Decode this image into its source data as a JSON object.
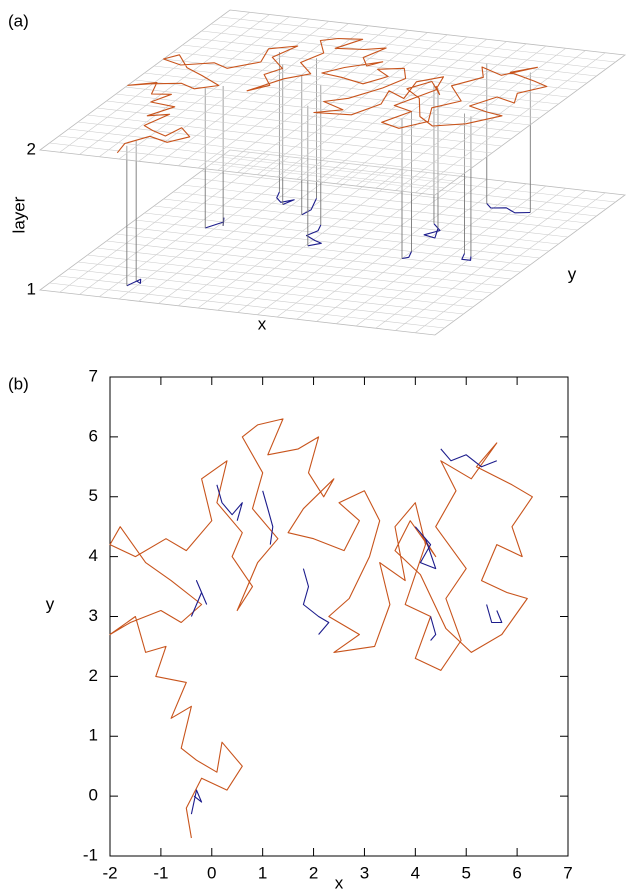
{
  "chart_data": [
    {
      "type": "layers",
      "panel_label": "(a)",
      "z_label": "layer",
      "zlim": [
        1,
        2
      ],
      "zticks": [
        1,
        2
      ],
      "x_label": "x",
      "y_label": "y",
      "layer_of_series": [
        2,
        1
      ],
      "grid": true
    },
    {
      "type": "line",
      "panel_label": "(b)",
      "x_label": "x",
      "y_label": "y",
      "xlim": [
        -2,
        7
      ],
      "ylim": [
        -1,
        7
      ],
      "xticks": [
        -2,
        -1,
        0,
        1,
        2,
        3,
        4,
        5,
        6,
        7
      ],
      "yticks": [
        -1,
        0,
        1,
        2,
        3,
        4,
        5,
        6,
        7
      ],
      "series": [
        {
          "color": "#c8541c",
          "x": [
            -0.4,
            -0.5,
            -0.2,
            0.3,
            0.6,
            0.2,
            0.1,
            -0.3,
            -0.6,
            -0.4,
            -0.8,
            -0.5,
            -1.1,
            -0.9,
            -1.3,
            -1.5,
            -2.0,
            -1.6,
            -1.0,
            -0.6,
            -0.2,
            -0.8,
            -1.3,
            -1.8,
            -2.0,
            -1.5,
            -0.9,
            -0.5,
            0.0,
            -0.2,
            0.3,
            0.1,
            0.6,
            0.4,
            0.8,
            0.5,
            0.9,
            1.3,
            0.8,
            1.0,
            0.6,
            0.9,
            1.4,
            1.1,
            1.7,
            2.1,
            1.9,
            2.2,
            2.4,
            1.8,
            1.5,
            2.0,
            2.6,
            2.9,
            2.5,
            3.0,
            3.3,
            3.1,
            2.7,
            2.3,
            2.9,
            2.4,
            3.2,
            3.5,
            3.3,
            3.8,
            3.6,
            4.0,
            4.2,
            3.8,
            4.3,
            4.0,
            4.5,
            4.9,
            4.6,
            5.0,
            4.4,
            4.8,
            4.5,
            5.1,
            5.6,
            5.2,
            5.9,
            6.3,
            5.9,
            6.1,
            5.6,
            5.3,
            5.8,
            6.2,
            5.7,
            5.1,
            4.6,
            4.1,
            3.6,
            3.9,
            4.4,
            4.1
          ],
          "values": [
            -0.7,
            -0.2,
            0.3,
            0.1,
            0.5,
            0.9,
            0.4,
            0.6,
            0.8,
            1.5,
            1.3,
            1.9,
            2.0,
            2.5,
            2.4,
            3.0,
            2.7,
            2.9,
            3.1,
            2.9,
            3.2,
            3.6,
            3.9,
            4.5,
            4.2,
            4.0,
            4.3,
            4.1,
            4.6,
            5.3,
            5.6,
            4.9,
            4.4,
            4.0,
            3.5,
            3.1,
            3.9,
            4.3,
            4.8,
            5.4,
            6.0,
            6.2,
            6.3,
            5.7,
            5.8,
            6.0,
            5.4,
            5.0,
            5.3,
            4.8,
            4.4,
            4.3,
            4.1,
            4.6,
            4.9,
            5.1,
            4.6,
            4.0,
            3.3,
            3.0,
            2.7,
            2.4,
            2.5,
            3.2,
            3.9,
            3.6,
            4.5,
            4.9,
            4.2,
            3.2,
            3.0,
            2.3,
            2.1,
            2.6,
            3.3,
            3.8,
            4.5,
            5.1,
            5.6,
            5.3,
            5.9,
            5.5,
            5.2,
            5.0,
            4.5,
            4.0,
            4.2,
            3.6,
            3.4,
            3.3,
            2.7,
            2.4,
            2.8,
            3.7,
            4.1,
            4.6,
            4.0,
            4.4
          ]
        },
        {
          "color": "#1c1c8c",
          "x": [
            -0.4,
            -0.3,
            -0.2,
            -0.35,
            null,
            -0.4,
            -0.2,
            -0.3,
            -0.1,
            null,
            0.1,
            0.2,
            0.4,
            0.6,
            0.5,
            null,
            1.0,
            1.1,
            1.2,
            1.15,
            null,
            1.8,
            1.9,
            1.8,
            2.1,
            2.3,
            2.1,
            null,
            4.0,
            4.3,
            4.1,
            4.4,
            4.2,
            null,
            4.3,
            4.4,
            4.3,
            null,
            4.5,
            4.7,
            5.0,
            5.3,
            5.6,
            null,
            5.4,
            5.5,
            5.7,
            5.6
          ],
          "values": [
            -0.3,
            0.1,
            -0.1,
            0.0,
            null,
            3.0,
            3.4,
            3.6,
            3.2,
            null,
            5.2,
            4.9,
            4.7,
            4.9,
            4.6,
            null,
            5.1,
            4.8,
            4.5,
            4.2,
            null,
            3.8,
            3.5,
            3.2,
            3.0,
            2.9,
            2.7,
            null,
            4.5,
            4.2,
            3.9,
            3.8,
            4.3,
            null,
            3.0,
            2.7,
            2.6,
            null,
            5.8,
            5.6,
            5.7,
            5.5,
            5.6,
            null,
            3.2,
            2.9,
            2.9,
            3.1
          ]
        }
      ]
    }
  ]
}
